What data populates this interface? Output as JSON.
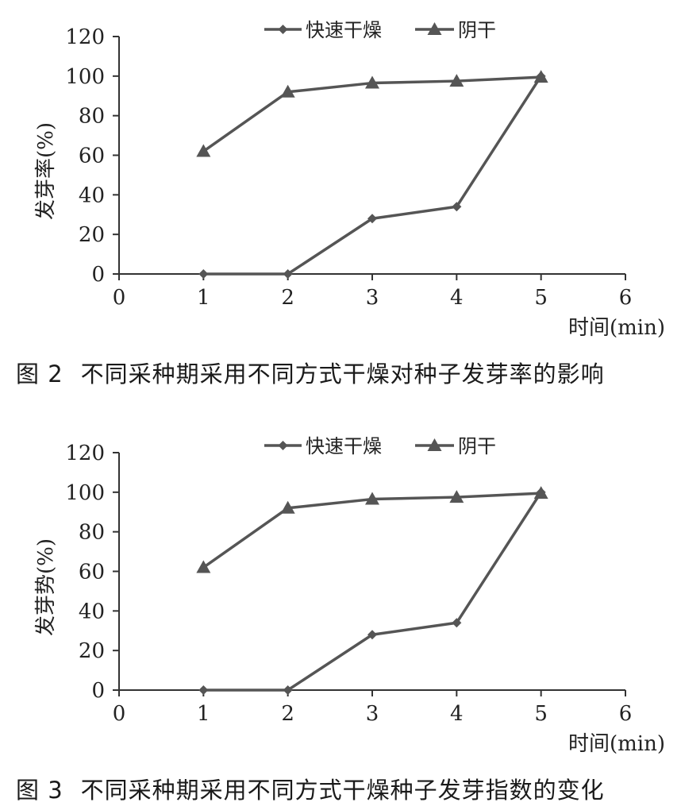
{
  "chart_data": [
    {
      "type": "line",
      "x": [
        1,
        2,
        3,
        4,
        5
      ],
      "xlim": [
        0,
        6
      ],
      "ylim": [
        0,
        120
      ],
      "xticks": [
        "0",
        "1",
        "2",
        "3",
        "4",
        "5",
        "6"
      ],
      "yticks": [
        "0",
        "20",
        "40",
        "60",
        "80",
        "100",
        "120"
      ],
      "xlabel": "时间(min)",
      "ylabel": "发芽率(%)",
      "legend_position": "top",
      "series": [
        {
          "name": "快速干燥",
          "marker": "diamond",
          "color": "#555555",
          "values": [
            0,
            0,
            28,
            34,
            100
          ]
        },
        {
          "name": "阴干",
          "marker": "triangle",
          "color": "#555555",
          "values": [
            62,
            92,
            96.5,
            97.5,
            99.5
          ]
        }
      ],
      "caption_num": "图 2",
      "caption_text": "不同采种期采用不同方式干燥对种子发芽率的影响"
    },
    {
      "type": "line",
      "x": [
        1,
        2,
        3,
        4,
        5
      ],
      "xlim": [
        0,
        6
      ],
      "ylim": [
        0,
        120
      ],
      "xticks": [
        "0",
        "1",
        "2",
        "3",
        "4",
        "5",
        "6"
      ],
      "yticks": [
        "0",
        "20",
        "40",
        "60",
        "80",
        "100",
        "120"
      ],
      "xlabel": "时间(min)",
      "ylabel": "发芽势(%)",
      "legend_position": "top",
      "series": [
        {
          "name": "快速干燥",
          "marker": "diamond",
          "color": "#555555",
          "values": [
            0,
            0,
            28,
            34,
            100
          ]
        },
        {
          "name": "阴干",
          "marker": "triangle",
          "color": "#555555",
          "values": [
            62,
            92,
            96.5,
            97.5,
            99.5
          ]
        }
      ],
      "caption_num": "图 3",
      "caption_text": "不同采种期采用不同方式干燥种子发芽指数的变化"
    }
  ]
}
